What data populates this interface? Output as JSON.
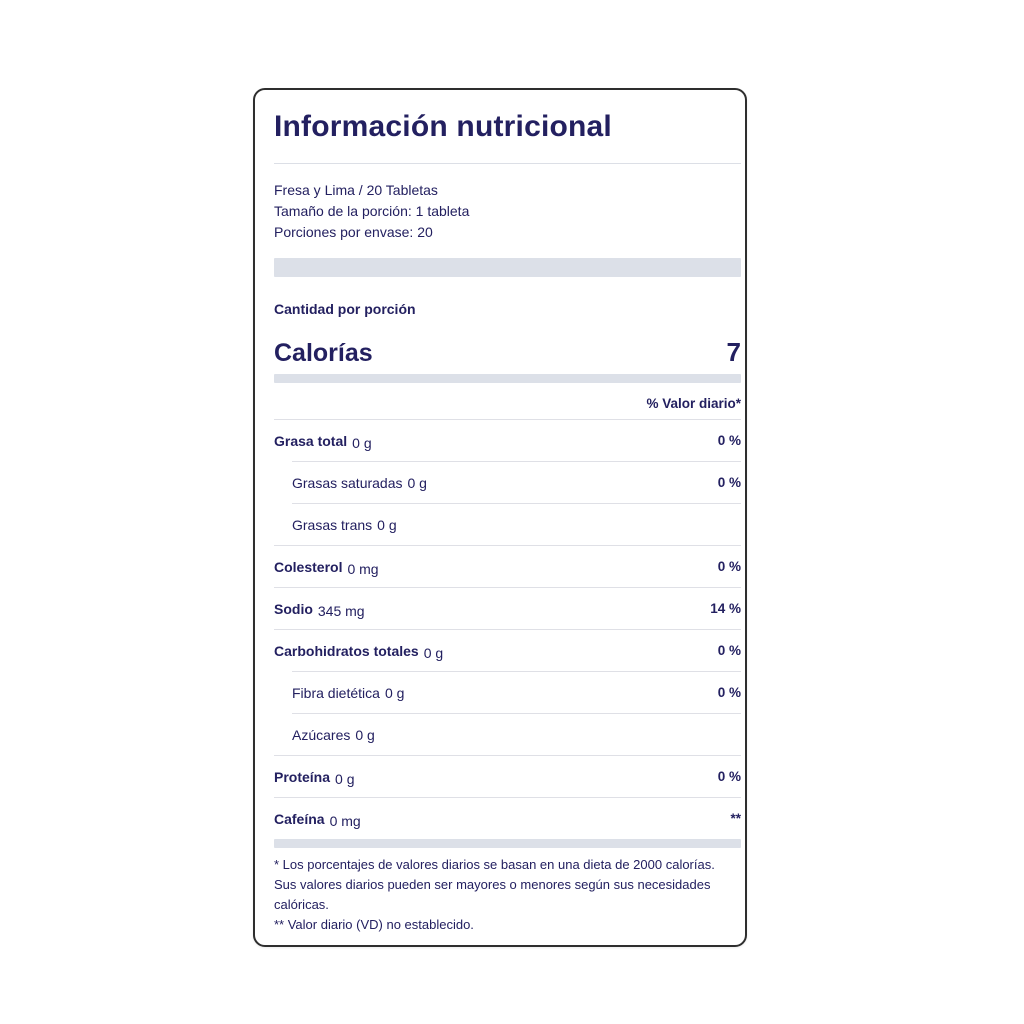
{
  "label": {
    "title": "Información nutricional",
    "meta": {
      "flavor": "Fresa y Lima / 20 Tabletas",
      "serving_size": "Tamaño de la porción: 1 tableta",
      "servings_per_container": "Porciones por envase: 20"
    },
    "amount_per_serving_label": "Cantidad por porción",
    "calories": {
      "label": "Calorías",
      "value": "7"
    },
    "daily_value_header": "% Valor diario*",
    "rows": [
      {
        "label": "Grasa total",
        "amount": "0 g",
        "dv": "0 %"
      },
      {
        "label": "Grasas saturadas",
        "amount": "0 g",
        "dv": "0 %"
      },
      {
        "label": "Grasas trans",
        "amount": "0 g",
        "dv": ""
      },
      {
        "label": "Colesterol",
        "amount": "0 mg",
        "dv": "0 %"
      },
      {
        "label": "Sodio",
        "amount": "345 mg",
        "dv": "14 %"
      },
      {
        "label": "Carbohidratos totales",
        "amount": "0 g",
        "dv": "0 %"
      },
      {
        "label": "Fibra dietética",
        "amount": "0 g",
        "dv": "0 %"
      },
      {
        "label": "Azúcares",
        "amount": "0 g",
        "dv": ""
      },
      {
        "label": "Proteína",
        "amount": "0 g",
        "dv": "0 %"
      },
      {
        "label": "Cafeína",
        "amount": "0 mg",
        "dv": "**"
      }
    ],
    "footnotes": {
      "daily_values": "* Los porcentajes de valores diarios se basan en una dieta de 2000 calorías. Sus valores diarios pueden ser mayores o menores según sus necesidades calóricas.",
      "not_established": "** Valor diario (VD) no establecido."
    },
    "colors": {
      "text": "#232060",
      "separator_bar": "#dce0e8",
      "divider": "#dfe0e6",
      "card_border": "#2e2e2e",
      "background": "#ffffff"
    }
  }
}
